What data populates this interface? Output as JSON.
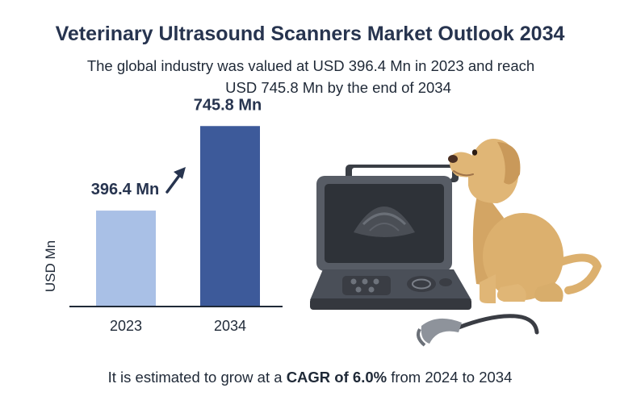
{
  "header": {
    "title": "Veterinary Ultrasound Scanners Market Outlook 2034",
    "subtitle_line1": "The global industry was valued at USD 396.4 Mn in 2023 and reach",
    "subtitle_line2": "USD 745.8 Mn by the end of 2034"
  },
  "footer": {
    "prefix": "It is estimated to grow at a ",
    "cagr_label": "CAGR of 6.0%",
    "suffix": " from 2024 to 2034"
  },
  "chart_data": {
    "type": "bar",
    "categories": [
      "2023",
      "2034"
    ],
    "values": [
      396.4,
      745.8
    ],
    "value_labels": [
      "396.4 Mn",
      "745.8 Mn"
    ],
    "ylabel": "USD Mn",
    "ylim": [
      0,
      800
    ],
    "grid": false,
    "colors": [
      "#a9c0e6",
      "#3d5a9a"
    ],
    "growth_arrow": true
  },
  "illustration": {
    "icons": [
      "ultrasound-scanner-icon",
      "probe-icon",
      "dog-icon"
    ],
    "colors": {
      "device": "#4a4f58",
      "screen": "#2e3238",
      "dog": "#dcb06e"
    }
  }
}
